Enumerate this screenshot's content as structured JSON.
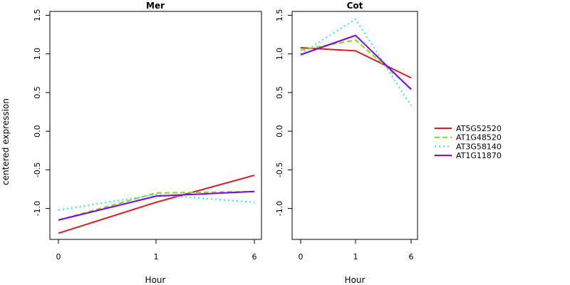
{
  "chart_data": [
    {
      "type": "line",
      "title": "Mer",
      "xlabel": "Hour",
      "ylabel": "centered expression",
      "categories": [
        "0",
        "1",
        "6"
      ],
      "ylim": [
        -1.4,
        1.55
      ],
      "yticks": [
        "-1.0",
        "-0.5",
        "0.0",
        "0.5",
        "1.0",
        "1.5"
      ],
      "series": [
        {
          "name": "AT5G52520",
          "values": [
            -1.32,
            -0.92,
            -0.57
          ]
        },
        {
          "name": "AT1G48520",
          "values": [
            -1.15,
            -0.8,
            -0.78
          ]
        },
        {
          "name": "AT3G58140",
          "values": [
            -1.02,
            -0.82,
            -0.92
          ]
        },
        {
          "name": "AT1G11870",
          "values": [
            -1.15,
            -0.84,
            -0.78
          ]
        }
      ]
    },
    {
      "type": "line",
      "title": "Cot",
      "xlabel": "Hour",
      "ylabel": "",
      "categories": [
        "0",
        "1",
        "6"
      ],
      "ylim": [
        -1.4,
        1.55
      ],
      "yticks": [
        "-1.0",
        "-0.5",
        "0.0",
        "0.5",
        "1.0",
        "1.5"
      ],
      "series": [
        {
          "name": "AT5G52520",
          "values": [
            1.08,
            1.04,
            0.69
          ]
        },
        {
          "name": "AT1G48520",
          "values": [
            1.05,
            1.18,
            0.55
          ]
        },
        {
          "name": "AT3G58140",
          "values": [
            1.0,
            1.45,
            0.33
          ]
        },
        {
          "name": "AT1G11870",
          "values": [
            0.99,
            1.24,
            0.54
          ]
        }
      ]
    }
  ],
  "legend": {
    "placement": "right",
    "items": [
      {
        "name": "AT5G52520",
        "color": "#e31a1c",
        "dash": "solid"
      },
      {
        "name": "AT1G48520",
        "color": "#7fdf00",
        "dash": "dashed"
      },
      {
        "name": "AT3G58140",
        "color": "#2ce6e6",
        "dash": "dotted"
      },
      {
        "name": "AT1G11870",
        "color": "#7f00ff",
        "dash": "solid"
      }
    ]
  }
}
